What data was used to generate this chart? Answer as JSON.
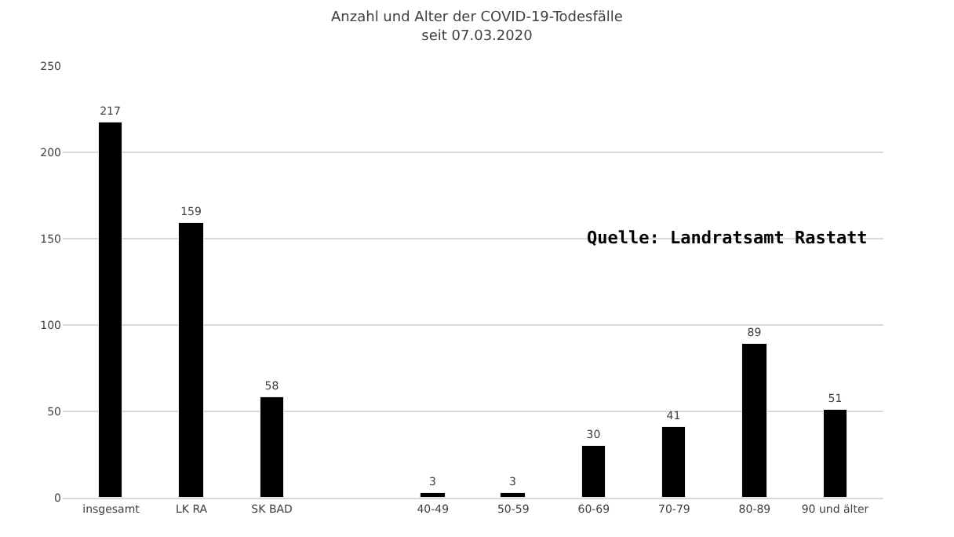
{
  "chart_data": {
    "type": "bar",
    "title": "Anzahl und Alter der COVID-19-Todesfälle",
    "subtitle": "seit 07.03.2020",
    "categories": [
      "insgesamt",
      "LK RA",
      "SK BAD",
      null,
      "40-49",
      "50-59",
      "60-69",
      "70-79",
      "80-89",
      "90 und älter"
    ],
    "values": [
      217,
      159,
      58,
      null,
      3,
      3,
      30,
      41,
      89,
      51
    ],
    "color": "#000000",
    "ylim": [
      0,
      250
    ],
    "yticks": [
      0,
      50,
      100,
      150,
      200,
      250
    ],
    "grid": "y",
    "data_labels": true,
    "annotations": [
      "Quelle: Landratsamt Rastatt"
    ]
  }
}
